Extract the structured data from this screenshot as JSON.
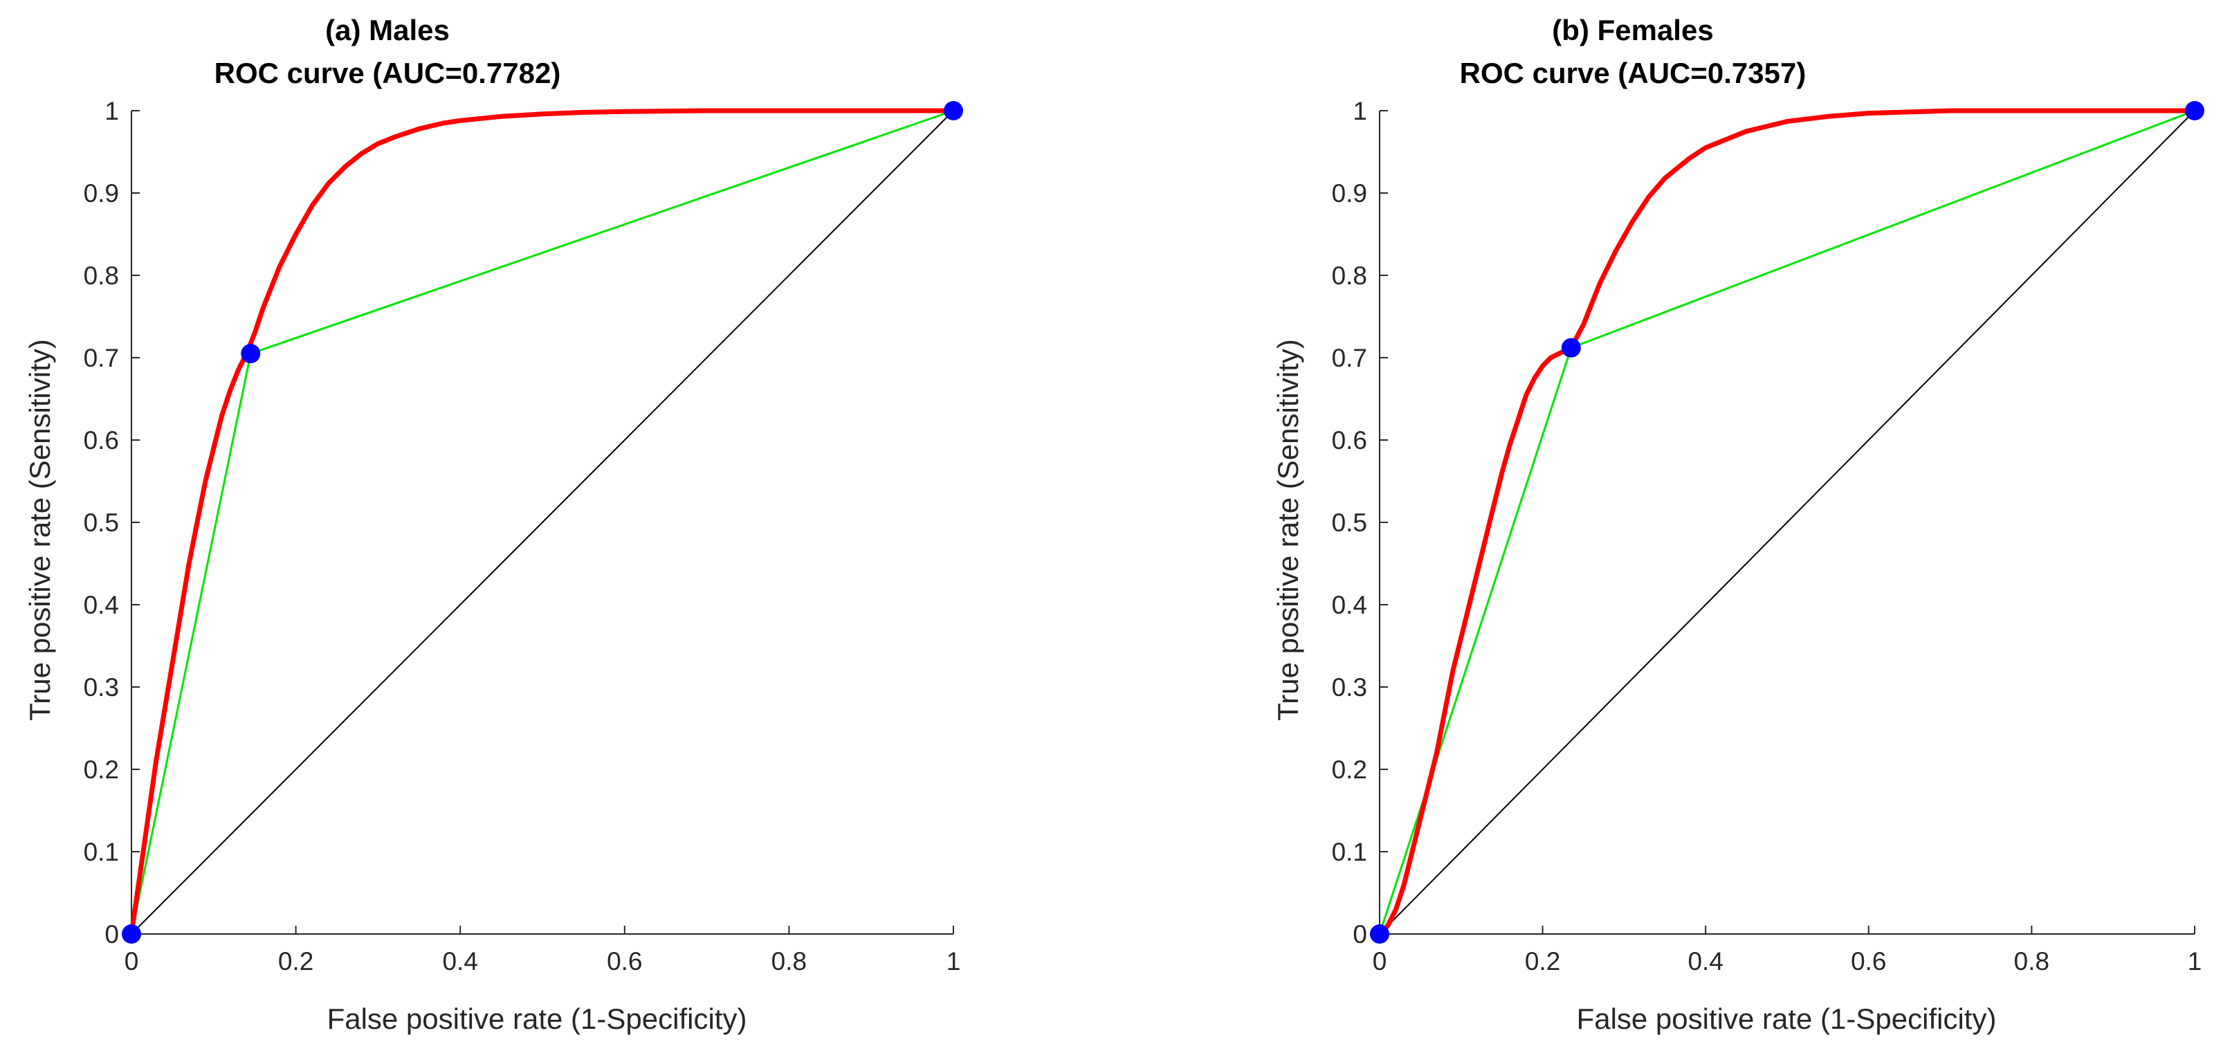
{
  "chart_data": [
    {
      "type": "line",
      "panel": "a",
      "title": "(a) Males",
      "subtitle": "ROC curve (AUC=0.7782)",
      "auc": 0.7782,
      "xlabel": "False positive rate (1-Specificity)",
      "ylabel": "True positive rate (Sensitivity)",
      "xlim": [
        0,
        1
      ],
      "ylim": [
        0,
        1
      ],
      "xticks": [
        0,
        0.2,
        0.4,
        0.6,
        0.8,
        1
      ],
      "xtick_labels": [
        "0",
        "0.2",
        "0.4",
        "0.6",
        "0.8",
        "1"
      ],
      "yticks": [
        0,
        0.1,
        0.2,
        0.3,
        0.4,
        0.5,
        0.6,
        0.7,
        0.8,
        0.9,
        1
      ],
      "ytick_labels": [
        "0",
        "0.1",
        "0.2",
        "0.3",
        "0.4",
        "0.5",
        "0.6",
        "0.7",
        "0.8",
        "0.9",
        "1"
      ],
      "grid": false,
      "series": [
        {
          "name": "smoothed-roc",
          "color": "#ff0000",
          "x": [
            0,
            0.01,
            0.02,
            0.03,
            0.04,
            0.05,
            0.06,
            0.07,
            0.08,
            0.09,
            0.1,
            0.11,
            0.12,
            0.13,
            0.14,
            0.15,
            0.16,
            0.17,
            0.18,
            0.19,
            0.2,
            0.22,
            0.24,
            0.26,
            0.28,
            0.3,
            0.32,
            0.35,
            0.38,
            0.4,
            0.45,
            0.5,
            0.55,
            0.6,
            0.7,
            0.8,
            0.9,
            1
          ],
          "y": [
            0,
            0.07,
            0.14,
            0.21,
            0.27,
            0.33,
            0.39,
            0.45,
            0.5,
            0.55,
            0.59,
            0.63,
            0.66,
            0.685,
            0.705,
            0.73,
            0.76,
            0.785,
            0.81,
            0.83,
            0.85,
            0.885,
            0.912,
            0.932,
            0.948,
            0.96,
            0.968,
            0.978,
            0.985,
            0.988,
            0.993,
            0.996,
            0.998,
            0.999,
            1,
            1,
            1,
            1
          ]
        },
        {
          "name": "empirical-roc",
          "color": "#00e600",
          "x": [
            0,
            0.145,
            1
          ],
          "y": [
            0,
            0.705,
            1
          ]
        },
        {
          "name": "chance-line",
          "color": "#000000",
          "x": [
            0,
            1
          ],
          "y": [
            0,
            1
          ]
        }
      ],
      "points": {
        "color": "#0000ff",
        "x": [
          0,
          0.145,
          1
        ],
        "y": [
          0,
          0.705,
          1
        ]
      }
    },
    {
      "type": "line",
      "panel": "b",
      "title": "(b) Females",
      "subtitle": "ROC curve (AUC=0.7357)",
      "auc": 0.7357,
      "xlabel": "False positive rate (1-Specificity)",
      "ylabel": "True positive rate (Sensitivity)",
      "xlim": [
        0,
        1
      ],
      "ylim": [
        0,
        1
      ],
      "xticks": [
        0,
        0.2,
        0.4,
        0.6,
        0.8,
        1
      ],
      "xtick_labels": [
        "0",
        "0.2",
        "0.4",
        "0.6",
        "0.8",
        "1"
      ],
      "yticks": [
        0,
        0.1,
        0.2,
        0.3,
        0.4,
        0.5,
        0.6,
        0.7,
        0.8,
        0.9,
        1
      ],
      "ytick_labels": [
        "0",
        "0.1",
        "0.2",
        "0.3",
        "0.4",
        "0.5",
        "0.6",
        "0.7",
        "0.8",
        "0.9",
        "1"
      ],
      "grid": false,
      "series": [
        {
          "name": "smoothed-roc",
          "color": "#ff0000",
          "x": [
            0,
            0.01,
            0.02,
            0.03,
            0.04,
            0.05,
            0.06,
            0.07,
            0.08,
            0.09,
            0.1,
            0.11,
            0.12,
            0.13,
            0.14,
            0.15,
            0.16,
            0.17,
            0.18,
            0.19,
            0.2,
            0.21,
            0.22,
            0.235,
            0.25,
            0.27,
            0.29,
            0.31,
            0.33,
            0.35,
            0.38,
            0.4,
            0.45,
            0.5,
            0.55,
            0.6,
            0.7,
            0.8,
            0.9,
            1
          ],
          "y": [
            0,
            0.01,
            0.03,
            0.06,
            0.1,
            0.14,
            0.18,
            0.22,
            0.27,
            0.32,
            0.36,
            0.4,
            0.44,
            0.48,
            0.52,
            0.56,
            0.595,
            0.625,
            0.655,
            0.675,
            0.69,
            0.7,
            0.705,
            0.712,
            0.74,
            0.79,
            0.83,
            0.865,
            0.895,
            0.918,
            0.942,
            0.955,
            0.975,
            0.987,
            0.993,
            0.997,
            1,
            1,
            1,
            1
          ]
        },
        {
          "name": "empirical-roc",
          "color": "#00e600",
          "x": [
            0,
            0.235,
            1
          ],
          "y": [
            0,
            0.712,
            1
          ]
        },
        {
          "name": "chance-line",
          "color": "#000000",
          "x": [
            0,
            1
          ],
          "y": [
            0,
            1
          ]
        }
      ],
      "points": {
        "color": "#0000ff",
        "x": [
          0,
          0.235,
          1
        ],
        "y": [
          0,
          0.712,
          1
        ]
      }
    }
  ]
}
